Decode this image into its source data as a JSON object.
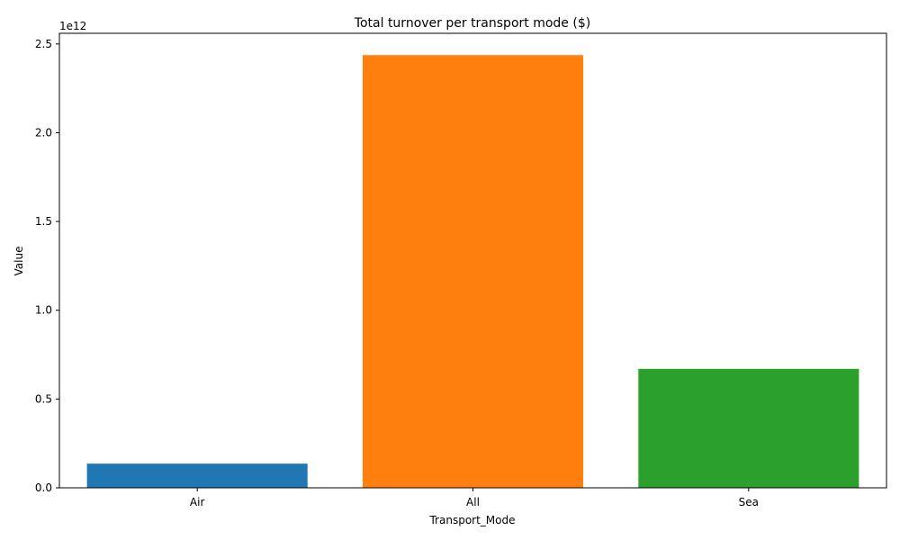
{
  "chart_data": {
    "type": "bar",
    "title": "Total turnover per transport mode ($)",
    "xlabel": "Transport_Mode",
    "ylabel": "Value",
    "categories": [
      "Air",
      "All",
      "Sea"
    ],
    "values": [
      136000000000,
      2437000000000,
      670000000000
    ],
    "colors": [
      "#1f77b4",
      "#ff7f0e",
      "#2ca02c"
    ],
    "ylim": [
      0,
      2560000000000
    ],
    "yticks": [
      0,
      500000000000,
      1000000000000,
      1500000000000,
      2000000000000,
      2500000000000
    ],
    "ytick_labels": [
      "0.0",
      "0.5",
      "1.0",
      "1.5",
      "2.0",
      "2.5"
    ],
    "y_offset_label": "1e12",
    "grid": false,
    "legend": "none"
  }
}
